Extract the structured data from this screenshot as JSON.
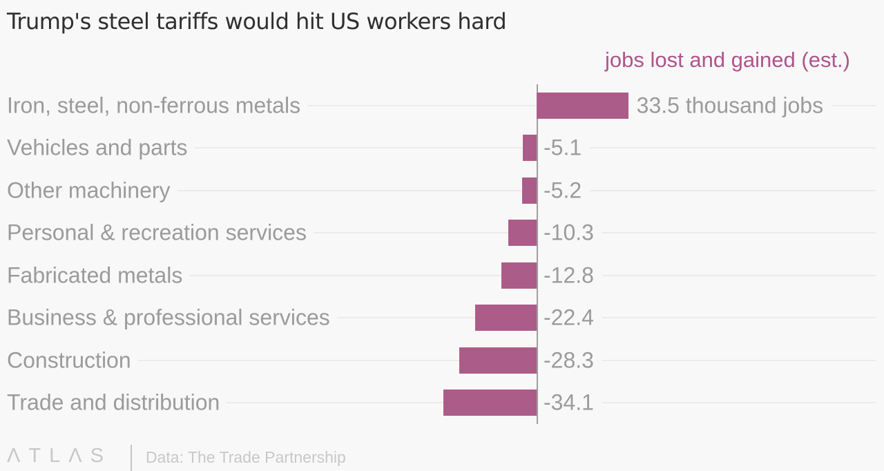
{
  "title": "Trump's steel tariffs would hit US workers hard",
  "subtitle": "jobs lost and gained (est.)",
  "footer": {
    "logo": "ΛTLΛS",
    "source": "Data: The Trade Partnership"
  },
  "colors": {
    "background": "#f8f8f8",
    "title": "#2f2f2f",
    "label": "#9b9b9b",
    "bar": "#ac5c89",
    "subtitle": "#b0548c",
    "axis": "#9e9e9e",
    "connector": "#ebebeb",
    "footer": "#c8c8c8"
  },
  "chart_data": {
    "type": "bar",
    "orientation": "horizontal",
    "title": "Trump's steel tariffs would hit US workers hard",
    "subtitle": "jobs lost and gained (est.)",
    "unit": "thousand jobs",
    "categories": [
      "Iron, steel, non-ferrous metals",
      "Vehicles and parts",
      "Other machinery",
      "Personal & recreation services",
      "Fabricated metals",
      "Business & professional services",
      "Construction",
      "Trade and distribution"
    ],
    "values": [
      33.5,
      -5.1,
      -5.2,
      -10.3,
      -12.8,
      -22.4,
      -28.3,
      -34.1
    ],
    "value_labels": [
      "33.5 thousand jobs",
      "-5.1",
      "-5.2",
      "-10.3",
      "-12.8",
      "-22.4",
      "-28.3",
      "-34.1"
    ],
    "baseline_x": 0,
    "xlim": [
      -34.1,
      33.5
    ],
    "grid": false,
    "legend": "none",
    "source": "Data: The Trade Partnership"
  }
}
